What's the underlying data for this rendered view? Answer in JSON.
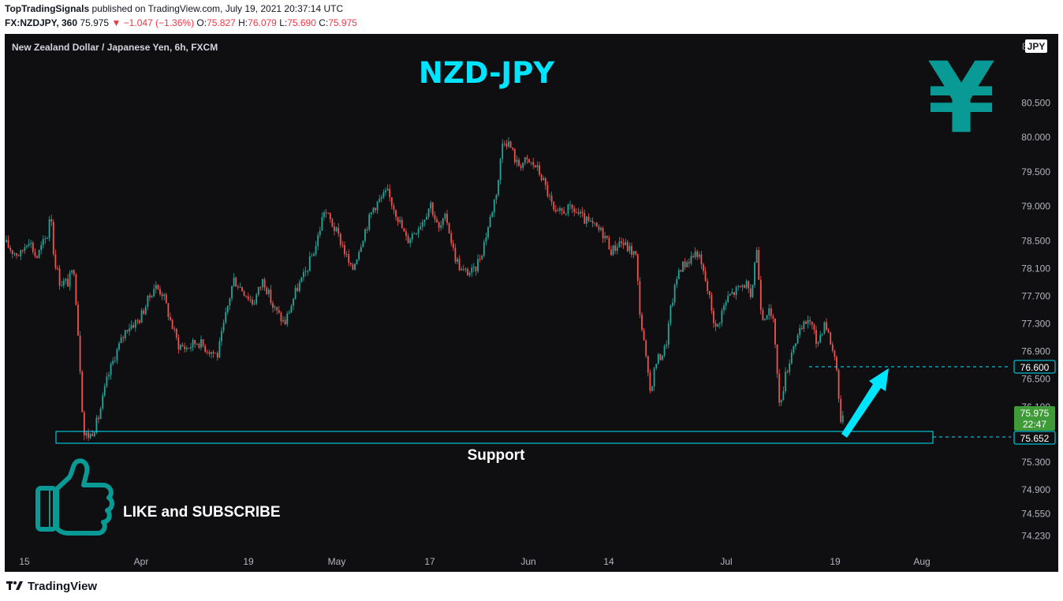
{
  "header": {
    "publisher": "TopTradingSignals",
    "published_text": "published on TradingView.com, July 19, 2021 20:37:14 UTC",
    "symbol": "FX:NZDJPY, 360",
    "last": "75.975",
    "change": "−1.047 (−1.36%)",
    "o_label": "O:",
    "o": "75.827",
    "h_label": "H:",
    "h": "76.079",
    "l_label": "L:",
    "l": "75.690",
    "c_label": "C:",
    "c": "75.975"
  },
  "panel_title": "New Zealand Dollar / Japanese Yen, 6h, FXCM",
  "currency_badge": "JPY",
  "currency_top_cut": "8",
  "annotations": {
    "headline": "NZD-JPY",
    "support": "Support",
    "cta": "LIKE and SUBSCRIBE",
    "yen_glyph": "¥"
  },
  "price_tags": {
    "target": "76.600",
    "last": "75.975",
    "countdown": "22:47",
    "support": "75.652"
  },
  "footer": {
    "brand": "TradingView"
  },
  "colors": {
    "up": "#26a69a",
    "down": "#ef5350",
    "accent": "#00e5ff",
    "teal_icon": "#0a9a96",
    "background": "#0f0f11"
  },
  "chart_data": {
    "type": "candlestick",
    "title": "New Zealand Dollar / Japanese Yen, 6h, FXCM",
    "yticks": [
      80.5,
      80.0,
      79.5,
      79.0,
      78.5,
      78.1,
      77.7,
      77.3,
      76.9,
      76.5,
      76.1,
      75.3,
      74.9,
      74.55,
      74.23
    ],
    "ytick_labels": [
      "80.500",
      "80.000",
      "79.500",
      "79.000",
      "78.500",
      "78.100",
      "77.700",
      "77.300",
      "76.900",
      "76.500",
      "76.100",
      "75.300",
      "74.900",
      "74.550",
      "74.230"
    ],
    "xticks": [
      "15",
      "Apr",
      "19",
      "May",
      "17",
      "Jun",
      "14",
      "Jul",
      "19",
      "Aug"
    ],
    "support_level": 75.652,
    "target_level": 76.6,
    "last_price": 75.975,
    "price_path": [
      [
        0,
        78.48
      ],
      [
        10,
        78.35
      ],
      [
        20,
        78.3
      ],
      [
        30,
        78.55
      ],
      [
        40,
        78.25
      ],
      [
        48,
        78.45
      ],
      [
        55,
        78.6
      ],
      [
        58,
        79.05
      ],
      [
        62,
        78.3
      ],
      [
        70,
        77.9
      ],
      [
        80,
        77.9
      ],
      [
        88,
        78.1
      ],
      [
        95,
        76.8
      ],
      [
        100,
        75.7
      ],
      [
        108,
        75.68
      ],
      [
        118,
        75.9
      ],
      [
        130,
        76.5
      ],
      [
        140,
        76.85
      ],
      [
        155,
        77.25
      ],
      [
        170,
        77.35
      ],
      [
        180,
        77.6
      ],
      [
        190,
        77.85
      ],
      [
        200,
        77.75
      ],
      [
        210,
        77.35
      ],
      [
        220,
        77.0
      ],
      [
        230,
        76.95
      ],
      [
        245,
        77.05
      ],
      [
        255,
        76.95
      ],
      [
        270,
        76.85
      ],
      [
        280,
        77.4
      ],
      [
        290,
        77.95
      ],
      [
        305,
        77.75
      ],
      [
        315,
        77.6
      ],
      [
        328,
        77.95
      ],
      [
        340,
        77.55
      ],
      [
        355,
        77.3
      ],
      [
        370,
        77.8
      ],
      [
        380,
        78.0
      ],
      [
        395,
        78.45
      ],
      [
        405,
        78.95
      ],
      [
        415,
        78.75
      ],
      [
        428,
        78.45
      ],
      [
        440,
        78.05
      ],
      [
        455,
        78.6
      ],
      [
        468,
        79.0
      ],
      [
        485,
        79.2
      ],
      [
        495,
        78.95
      ],
      [
        510,
        78.5
      ],
      [
        520,
        78.65
      ],
      [
        530,
        78.8
      ],
      [
        540,
        79.05
      ],
      [
        550,
        78.65
      ],
      [
        560,
        78.85
      ],
      [
        570,
        78.3
      ],
      [
        580,
        78.05
      ],
      [
        595,
        78.05
      ],
      [
        605,
        78.35
      ],
      [
        615,
        78.8
      ],
      [
        625,
        79.3
      ],
      [
        632,
        80.0
      ],
      [
        640,
        79.9
      ],
      [
        650,
        79.6
      ],
      [
        660,
        79.65
      ],
      [
        672,
        79.6
      ],
      [
        680,
        79.45
      ],
      [
        690,
        79.15
      ],
      [
        698,
        78.85
      ],
      [
        710,
        78.95
      ],
      [
        722,
        78.95
      ],
      [
        735,
        78.8
      ],
      [
        748,
        78.7
      ],
      [
        760,
        78.6
      ],
      [
        770,
        78.35
      ],
      [
        780,
        78.5
      ],
      [
        790,
        78.4
      ],
      [
        800,
        78.3
      ],
      [
        806,
        77.4
      ],
      [
        812,
        76.9
      ],
      [
        818,
        76.3
      ],
      [
        826,
        76.75
      ],
      [
        838,
        76.95
      ],
      [
        845,
        77.55
      ],
      [
        855,
        78.1
      ],
      [
        865,
        78.2
      ],
      [
        878,
        78.35
      ],
      [
        888,
        77.95
      ],
      [
        895,
        77.6
      ],
      [
        902,
        77.2
      ],
      [
        910,
        77.5
      ],
      [
        918,
        77.7
      ],
      [
        930,
        77.8
      ],
      [
        940,
        77.9
      ],
      [
        946,
        77.6
      ],
      [
        953,
        78.45
      ],
      [
        960,
        77.4
      ],
      [
        968,
        77.5
      ],
      [
        976,
        77.25
      ],
      [
        982,
        76.1
      ],
      [
        990,
        76.55
      ],
      [
        1000,
        77.0
      ],
      [
        1010,
        77.2
      ],
      [
        1020,
        77.4
      ],
      [
        1030,
        77.0
      ],
      [
        1040,
        77.35
      ],
      [
        1048,
        77.0
      ],
      [
        1055,
        76.7
      ],
      [
        1060,
        75.8
      ],
      [
        1064,
        75.975
      ]
    ]
  }
}
